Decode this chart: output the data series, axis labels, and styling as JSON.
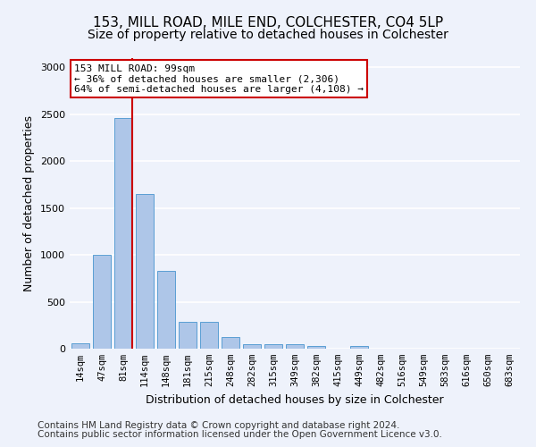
{
  "title1": "153, MILL ROAD, MILE END, COLCHESTER, CO4 5LP",
  "title2": "Size of property relative to detached houses in Colchester",
  "xlabel": "Distribution of detached houses by size in Colchester",
  "ylabel": "Number of detached properties",
  "categories": [
    "14sqm",
    "47sqm",
    "81sqm",
    "114sqm",
    "148sqm",
    "181sqm",
    "215sqm",
    "248sqm",
    "282sqm",
    "315sqm",
    "349sqm",
    "382sqm",
    "415sqm",
    "449sqm",
    "482sqm",
    "516sqm",
    "549sqm",
    "583sqm",
    "616sqm",
    "650sqm",
    "683sqm"
  ],
  "values": [
    55,
    1000,
    2460,
    1650,
    830,
    290,
    290,
    120,
    50,
    45,
    45,
    30,
    0,
    30,
    0,
    0,
    0,
    0,
    0,
    0,
    0
  ],
  "bar_color": "#aec6e8",
  "bar_edge_color": "#5a9fd4",
  "vline_color": "#cc0000",
  "annotation_text": "153 MILL ROAD: 99sqm\n← 36% of detached houses are smaller (2,306)\n64% of semi-detached houses are larger (4,108) →",
  "annotation_box_color": "#ffffff",
  "annotation_box_edge": "#cc0000",
  "ylim": [
    0,
    3100
  ],
  "yticks": [
    0,
    500,
    1000,
    1500,
    2000,
    2500,
    3000
  ],
  "footer1": "Contains HM Land Registry data © Crown copyright and database right 2024.",
  "footer2": "Contains public sector information licensed under the Open Government Licence v3.0.",
  "background_color": "#eef2fb",
  "axes_bg_color": "#eef2fb",
  "grid_color": "#ffffff",
  "title1_fontsize": 11,
  "title2_fontsize": 10,
  "xlabel_fontsize": 9,
  "ylabel_fontsize": 9,
  "tick_fontsize": 7.5,
  "ann_fontsize": 8,
  "footer_fontsize": 7.5
}
